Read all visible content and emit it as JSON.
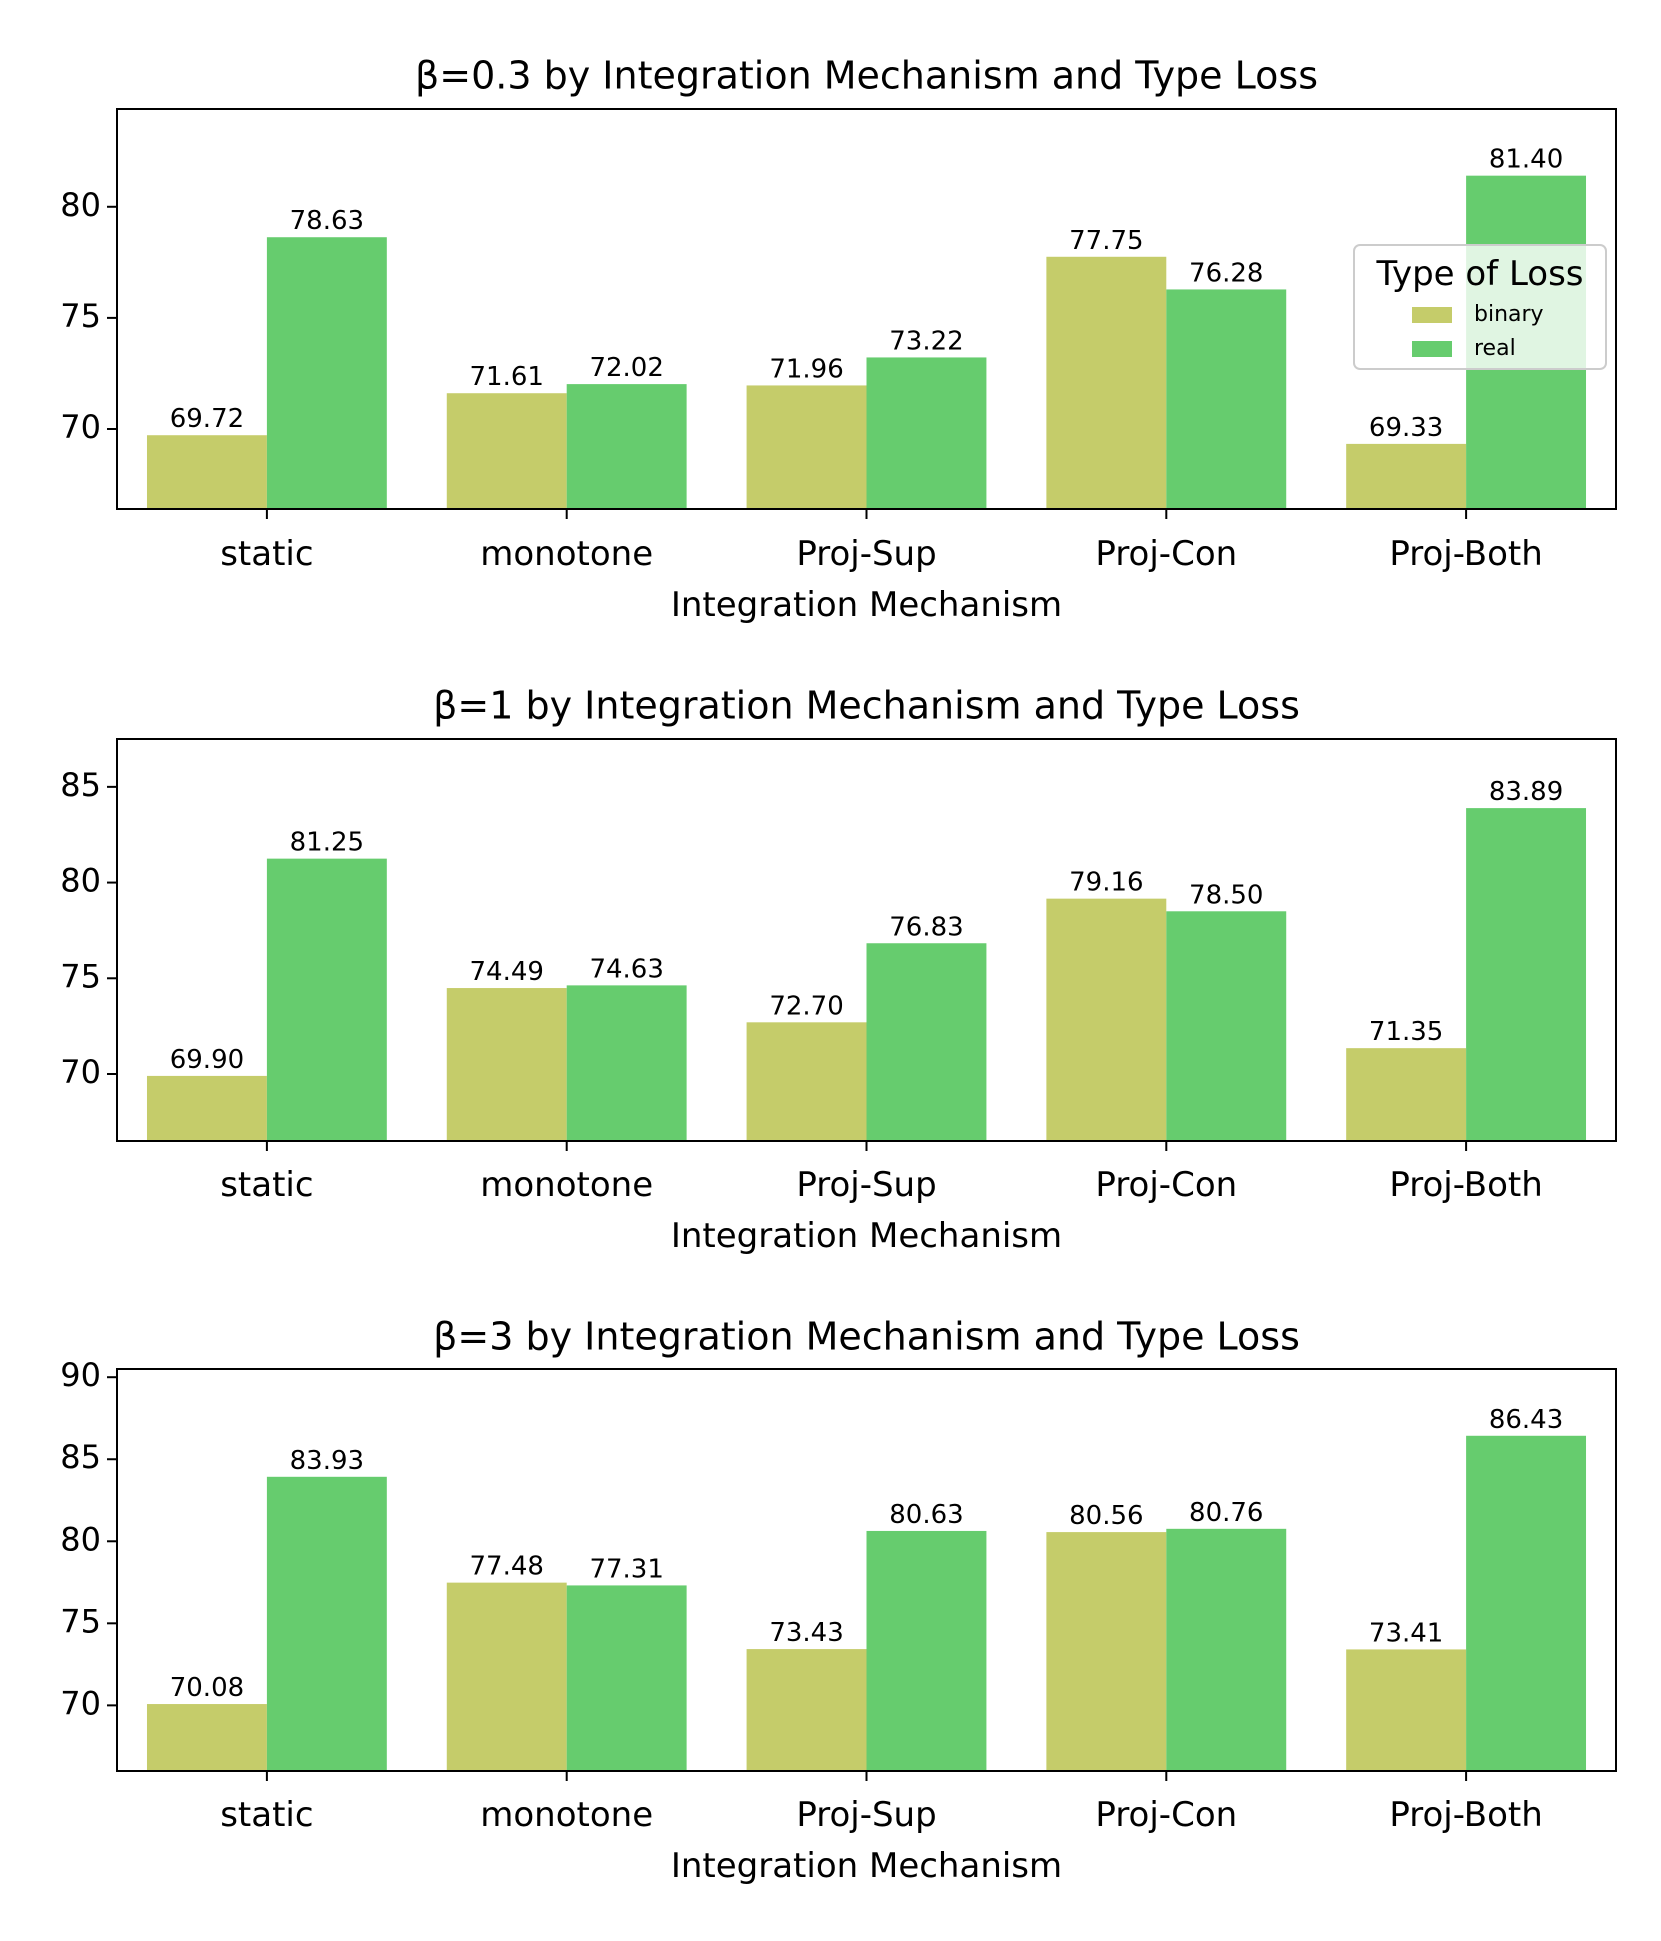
{
  "figure": {
    "x_label": "Integration Mechanism",
    "legend_title": "Type of Loss",
    "colors": {
      "binary": "#c5cc6a",
      "real": "#66cc6e"
    }
  },
  "chart_data": [
    {
      "type": "bar",
      "title": "β=0.3 by Integration Mechanism and Type Loss",
      "xlabel": "Integration Mechanism",
      "ylabel": "",
      "categories": [
        "static",
        "monotone",
        "Proj-Sup",
        "Proj-Con",
        "Proj-Both"
      ],
      "series": [
        {
          "name": "binary",
          "values": [
            69.72,
            71.61,
            71.96,
            77.75,
            69.33
          ]
        },
        {
          "name": "real",
          "values": [
            78.63,
            72.02,
            73.22,
            76.28,
            81.4
          ]
        }
      ],
      "labels": {
        "binary": [
          "69.72",
          "71.61",
          "71.96",
          "77.75",
          "69.33"
        ],
        "real": [
          "78.63",
          "72.02",
          "73.22",
          "76.28",
          "81.40"
        ]
      },
      "ylim": [
        66.4,
        84.4
      ],
      "yticks": [
        70,
        75,
        80
      ],
      "legend": {
        "title": "Type of Loss",
        "entries": [
          "binary",
          "real"
        ],
        "position": "right"
      }
    },
    {
      "type": "bar",
      "title": "β=1 by Integration Mechanism and Type Loss",
      "xlabel": "Integration Mechanism",
      "ylabel": "",
      "categories": [
        "static",
        "monotone",
        "Proj-Sup",
        "Proj-Con",
        "Proj-Both"
      ],
      "series": [
        {
          "name": "binary",
          "values": [
            69.9,
            74.49,
            72.7,
            79.16,
            71.35
          ]
        },
        {
          "name": "real",
          "values": [
            81.25,
            74.63,
            76.83,
            78.5,
            83.89
          ]
        }
      ],
      "labels": {
        "binary": [
          "69.90",
          "74.49",
          "72.70",
          "79.16",
          "71.35"
        ],
        "real": [
          "81.25",
          "74.63",
          "76.83",
          "78.50",
          "83.89"
        ]
      },
      "ylim": [
        66.5,
        87.5
      ],
      "yticks": [
        70,
        75,
        80,
        85
      ]
    },
    {
      "type": "bar",
      "title": "β=3 by Integration Mechanism and Type Loss",
      "xlabel": "Integration Mechanism",
      "ylabel": "",
      "categories": [
        "static",
        "monotone",
        "Proj-Sup",
        "Proj-Con",
        "Proj-Both"
      ],
      "series": [
        {
          "name": "binary",
          "values": [
            70.08,
            77.48,
            73.43,
            80.56,
            73.41
          ]
        },
        {
          "name": "real",
          "values": [
            83.93,
            77.31,
            80.63,
            80.76,
            86.43
          ]
        }
      ],
      "labels": {
        "binary": [
          "70.08",
          "77.48",
          "73.43",
          "80.56",
          "73.41"
        ],
        "real": [
          "83.93",
          "77.31",
          "80.63",
          "80.76",
          "86.43"
        ]
      },
      "ylim": [
        66.0,
        90.5
      ],
      "yticks": [
        70,
        75,
        80,
        85,
        90
      ]
    }
  ]
}
